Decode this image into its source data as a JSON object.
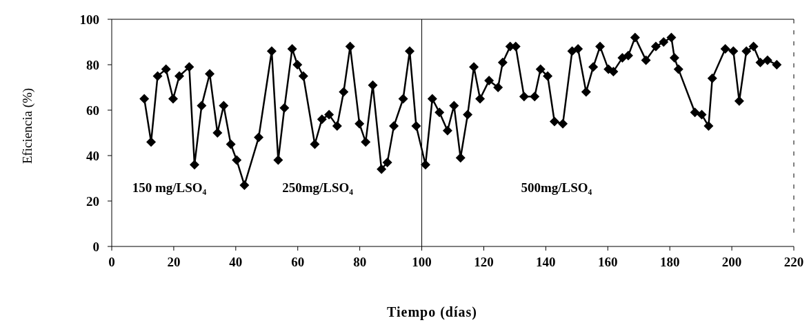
{
  "chart_data": {
    "type": "line",
    "xlabel": "Tiempo (días)",
    "ylabel": "Eficiencia (%)",
    "xlim": [
      0,
      220
    ],
    "xticks": [
      0,
      20,
      40,
      60,
      80,
      100,
      120,
      140,
      160,
      180,
      200,
      220
    ],
    "ylim": [
      0,
      100
    ],
    "yticks": [
      0,
      20,
      40,
      60,
      80,
      100
    ],
    "marker": "diamond",
    "line_style": "solid",
    "ref_lines": [
      {
        "axis": "x",
        "value": 100,
        "color": "#000000"
      }
    ],
    "annotations": [
      "150 mg/LSO₄",
      "250mg/LSO₄",
      "500mg/LSO₄"
    ],
    "x": [
      10.5,
      12.7,
      14.8,
      17.5,
      19.8,
      21.8,
      25,
      26.7,
      29,
      31.6,
      34.1,
      36.1,
      38.4,
      40.3,
      42.8,
      47.4,
      51.6,
      53.7,
      55.7,
      58.2,
      59.9,
      61.8,
      65.5,
      67.8,
      70.1,
      72.7,
      74.8,
      76.9,
      79.9,
      81.9,
      84.2,
      87,
      88.9,
      91,
      94,
      96.1,
      98.2,
      101.2,
      103.4,
      105.7,
      108.3,
      110.4,
      112.5,
      114.8,
      116.8,
      118.8,
      121.7,
      124.6,
      126.1,
      128.5,
      130.3,
      133,
      136.4,
      138.3,
      140.6,
      142.8,
      145.5,
      148.5,
      150.4,
      153,
      155.3,
      157.5,
      160.2,
      161.8,
      164.7,
      166.6,
      168.8,
      172.3,
      175.5,
      178,
      180.5,
      181.5,
      182.8,
      188.1,
      190.3,
      192.5,
      193.7,
      197.9,
      200.5,
      202.4,
      204.7,
      207,
      209.2,
      211.5,
      214.5
    ],
    "series": [
      {
        "color": "#000000",
        "values": [
          65,
          46,
          75,
          78,
          65,
          75,
          79,
          36,
          62,
          76,
          50,
          62,
          45,
          38,
          27,
          48,
          86,
          38,
          61,
          87,
          80,
          75,
          45,
          56,
          58,
          53,
          68,
          88,
          54,
          46,
          71,
          34,
          37,
          53,
          65,
          86,
          53,
          36,
          65,
          59,
          51,
          62,
          39,
          58,
          79,
          65,
          73,
          70,
          81,
          88,
          88,
          66,
          66,
          78,
          75,
          55,
          54,
          86,
          87,
          68,
          79,
          88,
          78,
          77,
          83,
          84,
          92,
          82,
          88,
          90,
          92,
          83,
          78,
          59,
          58,
          53,
          74,
          87,
          86,
          64,
          86,
          88,
          81,
          82,
          80
        ]
      }
    ]
  }
}
